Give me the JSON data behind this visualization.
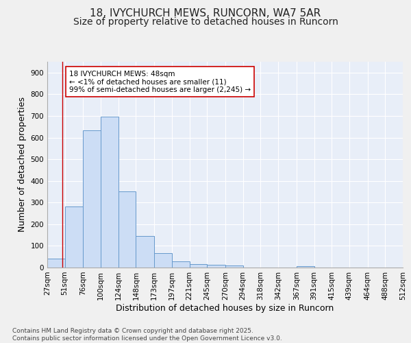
{
  "title_line1": "18, IVYCHURCH MEWS, RUNCORN, WA7 5AR",
  "title_line2": "Size of property relative to detached houses in Runcorn",
  "xlabel": "Distribution of detached houses by size in Runcorn",
  "ylabel": "Number of detached properties",
  "bar_color": "#ccddf5",
  "bar_edge_color": "#6699cc",
  "annotation_line_color": "#cc0000",
  "annotation_box_color": "#cc0000",
  "annotation_text": "18 IVYCHURCH MEWS: 48sqm\n← <1% of detached houses are smaller (11)\n99% of semi-detached houses are larger (2,245) →",
  "property_value": 48,
  "bin_edges": [
    27,
    51,
    76,
    100,
    124,
    148,
    173,
    197,
    221,
    245,
    270,
    294,
    318,
    342,
    367,
    391,
    415,
    439,
    464,
    488,
    512
  ],
  "bin_counts": [
    40,
    283,
    633,
    698,
    352,
    145,
    65,
    28,
    17,
    12,
    10,
    0,
    0,
    0,
    5,
    0,
    0,
    0,
    0,
    0
  ],
  "ylim": [
    0,
    950
  ],
  "yticks": [
    0,
    100,
    200,
    300,
    400,
    500,
    600,
    700,
    800,
    900
  ],
  "background_color": "#e8eef8",
  "fig_background_color": "#f0f0f0",
  "grid_color": "#ffffff",
  "footer_text": "Contains HM Land Registry data © Crown copyright and database right 2025.\nContains public sector information licensed under the Open Government Licence v3.0.",
  "title_fontsize": 11,
  "subtitle_fontsize": 10,
  "axis_label_fontsize": 9,
  "tick_fontsize": 7.5,
  "annotation_fontsize": 7.5,
  "footer_fontsize": 6.5
}
